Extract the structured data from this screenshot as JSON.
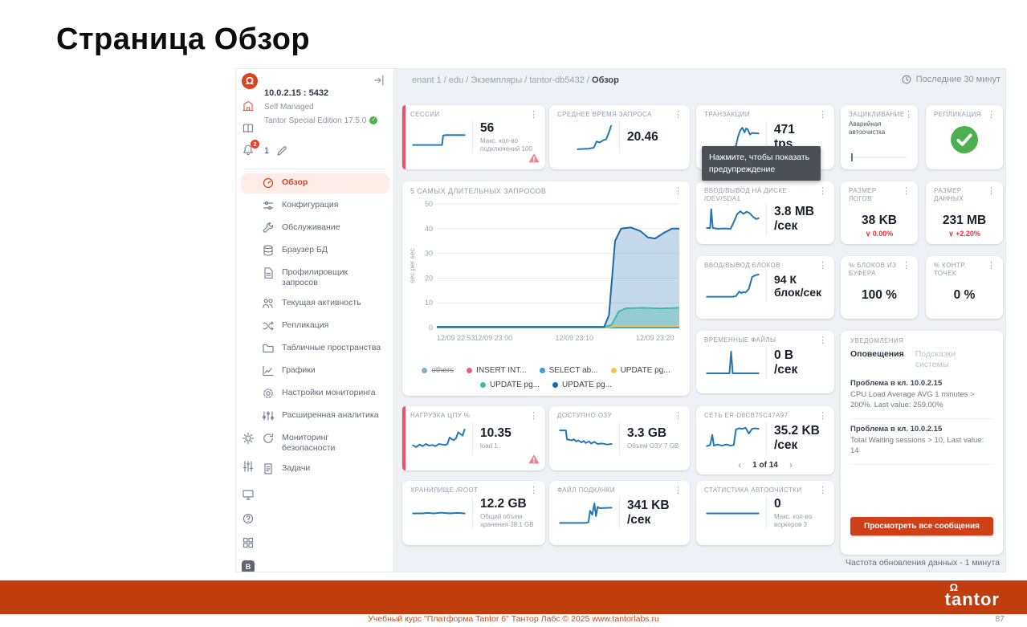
{
  "slide": {
    "title": "Страница Обзор",
    "footer": "Учебный курс \"Платформа Tantor 6\" Тантор Лабс © 2025 www.tantorlabs.ru",
    "page_number": "87",
    "brand": "tantor"
  },
  "colors": {
    "accent": "#d9431f",
    "footer_band": "#c23d0e",
    "chart_blue": "#2277b8",
    "alert_stripe": "#f0506e",
    "success_green": "#4caf50",
    "delta_red": "#e8333f"
  },
  "icons": {
    "kebab-icon": "⋮",
    "clock-icon": "circle clock",
    "warning-icon": "pink triangle !",
    "check-icon": "white check on green circle",
    "collapse-icon": "arrow to bar",
    "bell-icon": "bell outline",
    "pencil-icon": "pencil outline",
    "chevron-left": "‹",
    "chevron-right": "›",
    "delta-down": "∨",
    "logo": "Ω on red circle"
  },
  "sidebar": {
    "server": {
      "address": "10.0.2.15 : 5432",
      "management": "Self Managed",
      "edition": "Tantor Special Edition 17.5.0",
      "bell_badge": "2",
      "agents_count": "1",
      "version_badge": "B"
    },
    "menu": [
      {
        "label": "Обзор",
        "icon": "overview",
        "active": true
      },
      {
        "label": "Конфигурация",
        "icon": "config"
      },
      {
        "label": "Обслуживание",
        "icon": "maintenance"
      },
      {
        "label": "Браузер БД",
        "icon": "database"
      },
      {
        "label": "Профилировщик запросов",
        "icon": "profiler"
      },
      {
        "label": "Текущая активность",
        "icon": "activity"
      },
      {
        "label": "Репликация",
        "icon": "replication"
      },
      {
        "label": "Табличные пространства",
        "icon": "tablespaces"
      },
      {
        "label": "Графики",
        "icon": "charts"
      },
      {
        "label": "Настройки мониторинга",
        "icon": "settings"
      },
      {
        "label": "Расширенная аналитика",
        "icon": "analytics"
      },
      {
        "label": "Мониторинг безопасности",
        "icon": "security"
      },
      {
        "label": "Задачи",
        "icon": "tasks"
      }
    ]
  },
  "header": {
    "breadcrumb_prefix": "enant 1 / edu / Экземпляры / tantor-db5432 /",
    "breadcrumb_current": "Обзор",
    "time_range": "Последние 30 минут"
  },
  "tooltip": "Нажмите, чтобы показать предупреждение",
  "footer_note": "Частота обновления данных - 1 минута",
  "cards": {
    "sessions": {
      "title": "СЕССИИ",
      "value": "56",
      "subtitle": "Макс. кол-во подключений 100",
      "spark": [
        [
          2,
          22
        ],
        [
          56,
          22
        ],
        [
          58,
          58
        ],
        [
          62,
          60
        ],
        [
          98,
          60
        ]
      ]
    },
    "avg_query": {
      "title": "СРЕДНЕЕ ВРЕМЯ ЗАПРОСА",
      "value": "20.46",
      "spark": [
        [
          35,
          6
        ],
        [
          55,
          8
        ],
        [
          65,
          12
        ],
        [
          70,
          35
        ],
        [
          76,
          32
        ],
        [
          82,
          40
        ],
        [
          88,
          44
        ],
        [
          93,
          70
        ],
        [
          97,
          95
        ]
      ]
    },
    "tx": {
      "title": "ТРАНЗАКЦИИ",
      "value": "471",
      "unit": "tps",
      "spark": [
        [
          2,
          15
        ],
        [
          52,
          15
        ],
        [
          56,
          18
        ],
        [
          60,
          55
        ],
        [
          64,
          78
        ],
        [
          68,
          88
        ],
        [
          72,
          70
        ],
        [
          75,
          85
        ],
        [
          78,
          82
        ],
        [
          82,
          62
        ],
        [
          86,
          68
        ],
        [
          98,
          66
        ]
      ]
    },
    "wraparound": {
      "title": "ЗАЦИКЛИВАНИЕ",
      "subtitle": "Аварийная автоочистка"
    },
    "replication": {
      "title": "РЕПЛИКАЦИЯ",
      "status": "ok"
    },
    "disk_io": {
      "title": "ВВОД/ВЫВОД НА ДИСКЕ /DEV/SDA1",
      "value": "3.8 MB",
      "unit": "/сек",
      "spark": [
        [
          2,
          18
        ],
        [
          8,
          18
        ],
        [
          10,
          90
        ],
        [
          13,
          18
        ],
        [
          22,
          15
        ],
        [
          34,
          16
        ],
        [
          46,
          15
        ],
        [
          52,
          40
        ],
        [
          58,
          70
        ],
        [
          64,
          82
        ],
        [
          70,
          72
        ],
        [
          76,
          80
        ],
        [
          82,
          74
        ],
        [
          88,
          60
        ],
        [
          94,
          52
        ],
        [
          98,
          55
        ]
      ]
    },
    "log_size": {
      "title": "РАЗМЕР ЛОГОВ",
      "value": "38 KB",
      "delta": "∨ 0.00%"
    },
    "data_size": {
      "title": "РАЗМЕР ДАННЫХ",
      "value": "231 MB",
      "delta": "∨ +2.20%"
    },
    "blocks_io": {
      "title": "ВВОД/ВЫВОД БЛОКОВ",
      "value": "94 К",
      "unit": "блок/сек",
      "spark": [
        [
          2,
          10
        ],
        [
          50,
          10
        ],
        [
          56,
          12
        ],
        [
          62,
          30
        ],
        [
          66,
          24
        ],
        [
          70,
          28
        ],
        [
          74,
          26
        ],
        [
          80,
          40
        ],
        [
          86,
          85
        ],
        [
          92,
          92
        ],
        [
          98,
          95
        ]
      ]
    },
    "buffer_pct": {
      "title": "% БЛОКОВ ИЗ БУФЕРА",
      "value": "100 %"
    },
    "ckpt_pct": {
      "title": "% КОНТР. ТОЧЕК",
      "value": "0 %"
    },
    "temp_files": {
      "title": "ВРЕМЕННЫЕ ФАЙЛЫ",
      "value": "0 B",
      "unit": "/сек",
      "spark": [
        [
          2,
          12
        ],
        [
          44,
          12
        ],
        [
          47,
          95
        ],
        [
          50,
          12
        ],
        [
          98,
          12
        ]
      ]
    },
    "cpu": {
      "title": "НАГРУЗКА ЦПУ %",
      "value": "10.35",
      "subtitle": "load 1",
      "spark": [
        [
          2,
          25
        ],
        [
          8,
          18
        ],
        [
          14,
          28
        ],
        [
          20,
          22
        ],
        [
          26,
          30
        ],
        [
          32,
          24
        ],
        [
          38,
          26
        ],
        [
          44,
          22
        ],
        [
          50,
          30
        ],
        [
          56,
          28
        ],
        [
          62,
          26
        ],
        [
          66,
          30
        ],
        [
          70,
          55
        ],
        [
          74,
          48
        ],
        [
          78,
          45
        ],
        [
          82,
          52
        ],
        [
          86,
          75
        ],
        [
          90,
          68
        ],
        [
          94,
          62
        ],
        [
          98,
          85
        ]
      ]
    },
    "ram": {
      "title": "ДОСТУПНО ОЗУ",
      "value": "3.3 GB",
      "subtitle": "Объем ОЗУ 7 GB",
      "spark": [
        [
          2,
          82
        ],
        [
          13,
          82
        ],
        [
          15,
          48
        ],
        [
          24,
          44
        ],
        [
          28,
          48
        ],
        [
          32,
          40
        ],
        [
          36,
          44
        ],
        [
          42,
          36
        ],
        [
          46,
          42
        ],
        [
          50,
          34
        ],
        [
          56,
          40
        ],
        [
          60,
          32
        ],
        [
          66,
          38
        ],
        [
          72,
          30
        ],
        [
          80,
          32
        ],
        [
          90,
          28
        ],
        [
          98,
          30
        ]
      ]
    },
    "network": {
      "title": "СЕТЬ ER-D8CB75C47A97",
      "value": "35.2 KB",
      "unit": "/сек",
      "pagination": "1 of 14",
      "spark": [
        [
          2,
          22
        ],
        [
          8,
          26
        ],
        [
          12,
          65
        ],
        [
          15,
          24
        ],
        [
          22,
          28
        ],
        [
          30,
          24
        ],
        [
          38,
          28
        ],
        [
          46,
          24
        ],
        [
          52,
          26
        ],
        [
          56,
          85
        ],
        [
          62,
          90
        ],
        [
          68,
          88
        ],
        [
          74,
          92
        ],
        [
          80,
          70
        ],
        [
          86,
          88
        ],
        [
          92,
          90
        ],
        [
          98,
          88
        ]
      ]
    },
    "storage": {
      "title": "ХРАНИЛИЩЕ /ROOT",
      "value": "12.2 GB",
      "subtitle": "Общий объем хранения 38.1 GB",
      "spark": [
        [
          2,
          50
        ],
        [
          20,
          50
        ],
        [
          30,
          52
        ],
        [
          40,
          50
        ],
        [
          55,
          53
        ],
        [
          70,
          50
        ],
        [
          85,
          52
        ],
        [
          98,
          50
        ]
      ]
    },
    "swap": {
      "title": "ФАЙЛ ПОДКАЧКИ",
      "value": "341 KB",
      "unit": "/сек",
      "spark": [
        [
          2,
          14
        ],
        [
          50,
          14
        ],
        [
          55,
          16
        ],
        [
          58,
          60
        ],
        [
          62,
          45
        ],
        [
          66,
          88
        ],
        [
          69,
          40
        ],
        [
          72,
          75
        ],
        [
          76,
          70
        ],
        [
          98,
          72
        ]
      ]
    },
    "autovacuum": {
      "title": "СТАТИСТИКА АВТООЧИСТКИ",
      "value": "0",
      "subtitle": "Макс. кол-во воркеров 3",
      "spark": [
        [
          2,
          50
        ],
        [
          98,
          50
        ]
      ]
    }
  },
  "chart_data": {
    "type": "area",
    "title": "5 САМЫХ ДЛИТЕЛЬНЫХ ЗАПРОСОВ",
    "ylabel": "sec per sec",
    "ylim": [
      0,
      50
    ],
    "yticks": [
      0,
      10,
      20,
      30,
      40,
      50
    ],
    "xticks": [
      "12/09 22:53",
      "12/09 23:00",
      "12/09 23:10",
      "12/09 23:20"
    ],
    "xtick_pos": [
      0,
      0.233,
      0.567,
      0.9
    ],
    "grid": true,
    "legend_position": "bottom",
    "series": [
      {
        "name": "others",
        "color": "#82aecf",
        "strike": true,
        "hidden": true,
        "points": []
      },
      {
        "name": "INSERT INT...",
        "color": "#ee5c86",
        "points": [
          [
            0,
            0
          ],
          [
            1,
            0
          ]
        ]
      },
      {
        "name": "SELECT ab...",
        "color": "#3f9bd8",
        "points": [
          [
            0,
            0
          ],
          [
            1,
            0
          ]
        ]
      },
      {
        "name": "UPDATE pg...",
        "color": "#f6c44a",
        "points": [
          [
            0,
            0.1
          ],
          [
            0.7,
            0.1
          ],
          [
            0.74,
            0.6
          ],
          [
            1,
            0.6
          ]
        ]
      },
      {
        "name": "UPDATE pg...",
        "color": "#45b8ac",
        "fill": "rgba(69,184,172,0.38)",
        "points": [
          [
            0,
            0.2
          ],
          [
            0.69,
            0.2
          ],
          [
            0.72,
            1
          ],
          [
            0.75,
            6.5
          ],
          [
            0.78,
            7.8
          ],
          [
            0.85,
            8
          ],
          [
            0.92,
            7.7
          ],
          [
            1,
            8
          ]
        ]
      },
      {
        "name": "UPDATE pg...",
        "color": "#1b6aad",
        "fill": "rgba(63,130,186,0.30)",
        "points": [
          [
            0,
            0.3
          ],
          [
            0.69,
            0.3
          ],
          [
            0.71,
            5
          ],
          [
            0.735,
            35
          ],
          [
            0.76,
            40
          ],
          [
            0.8,
            40.5
          ],
          [
            0.84,
            39
          ],
          [
            0.87,
            36.5
          ],
          [
            0.9,
            36
          ],
          [
            0.94,
            38.5
          ],
          [
            0.97,
            40
          ],
          [
            1,
            40
          ]
        ]
      }
    ]
  },
  "notifications": {
    "title": "УВЕДОМЛЕНИЯ",
    "tabs": [
      "Оповещения",
      "Подсказки системы"
    ],
    "active_tab": 0,
    "items": [
      {
        "title": "Проблема в кл. 10.0.2.15",
        "text": "CPU Load Average AVG 1 minutes > 200%. Last value: 259.00%"
      },
      {
        "title": "Проблема в кл. 10.0.2.15",
        "text": "Total Waiting sessions > 10, Last value: 14"
      }
    ],
    "button": "Просмотреть все сообщения"
  }
}
